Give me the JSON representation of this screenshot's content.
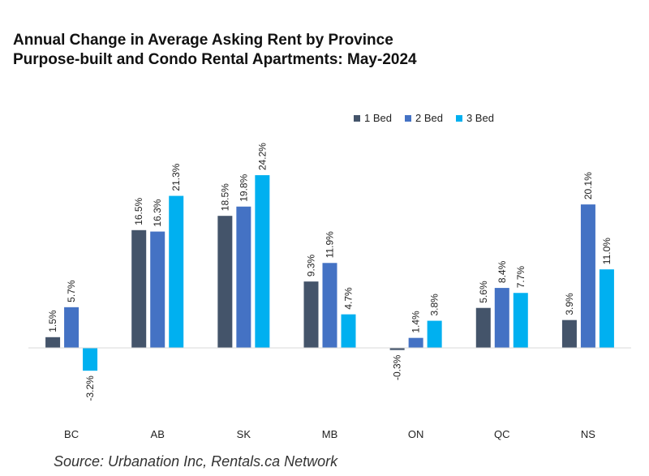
{
  "title": {
    "line1": "Annual Change in Average Asking Rent by Province",
    "line2": "Purpose-built and Condo Rental Apartments: May-2024"
  },
  "source": "Source: Urbanation Inc, Rentals.ca Network",
  "colors": {
    "1 Bed": "#44546a",
    "2 Bed": "#4472c4",
    "3 Bed": "#00b0f0"
  },
  "chart_data": {
    "type": "bar",
    "categories": [
      "BC",
      "AB",
      "SK",
      "MB",
      "ON",
      "QC",
      "NS"
    ],
    "series": [
      {
        "name": "1 Bed",
        "values": [
          1.5,
          16.5,
          18.5,
          9.3,
          -0.3,
          5.6,
          3.9
        ],
        "labels": [
          "1.5%",
          "16.5%",
          "18.5%",
          "9.3%",
          "-0.3%",
          "5.6%",
          "3.9%"
        ]
      },
      {
        "name": "2 Bed",
        "values": [
          5.7,
          16.3,
          19.8,
          11.9,
          1.4,
          8.4,
          20.1
        ],
        "labels": [
          "5.7%",
          "16.3%",
          "19.8%",
          "11.9%",
          "1.4%",
          "8.4%",
          "20.1%"
        ]
      },
      {
        "name": "3 Bed",
        "values": [
          -3.2,
          21.3,
          24.2,
          4.7,
          3.8,
          7.7,
          11.0
        ],
        "labels": [
          "-3.2%",
          "21.3%",
          "24.2%",
          "4.7%",
          "3.8%",
          "7.7%",
          "11.0%"
        ]
      }
    ],
    "ylim": [
      -12,
      35
    ],
    "legend": "top-right",
    "grid": false
  }
}
